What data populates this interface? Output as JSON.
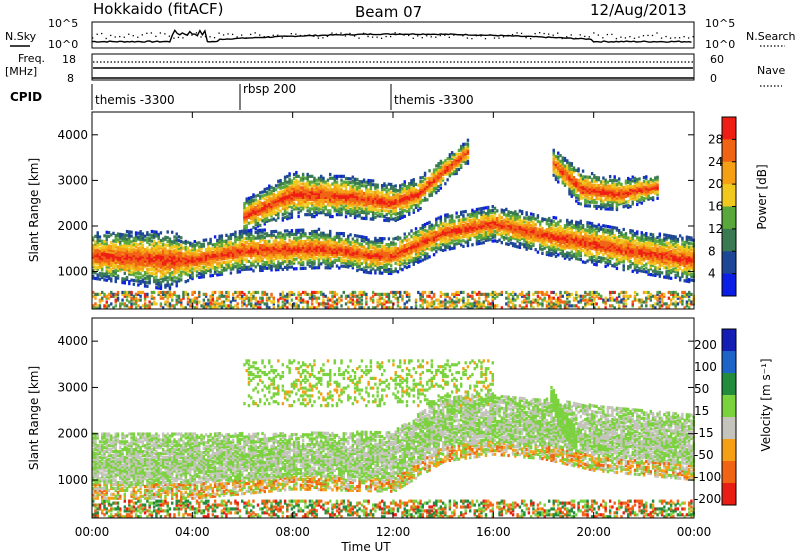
{
  "header": {
    "station": "Hokkaido (fitACF)",
    "beam": "Beam 07",
    "date": "12/Aug/2013"
  },
  "noise_panel": {
    "left_label": "N.Sky",
    "right_label": "N.Search",
    "left_ticks": [
      "10^5",
      "10^0"
    ],
    "right_ticks": [
      "10^5",
      "10^0"
    ]
  },
  "freq_panel": {
    "left_label_1": "Freq.",
    "left_label_2": "[MHz]",
    "right_label": "Nave",
    "left_ticks": [
      "18",
      "8"
    ],
    "right_ticks": [
      "60",
      "0"
    ]
  },
  "cpid": {
    "label": "CPID",
    "segments": [
      {
        "text": "themis -3300",
        "start_hour": 0
      },
      {
        "text": "rbsp 200",
        "start_hour": 6
      },
      {
        "text": "themis -3300",
        "start_hour": 12
      }
    ]
  },
  "power_panel": {
    "ylabel": "Slant Range [km]",
    "y_ticks": [
      "1000",
      "2000",
      "3000",
      "4000"
    ],
    "colorbar": {
      "label": "Power [dB]",
      "ticks": [
        "4",
        "8",
        "12",
        "16",
        "20",
        "24",
        "28"
      ]
    }
  },
  "velocity_panel": {
    "ylabel": "Slant Range [km]",
    "y_ticks": [
      "1000",
      "2000",
      "3000",
      "4000"
    ],
    "colorbar": {
      "label": "Velocity [m s⁻¹]",
      "ticks": [
        "200",
        "100",
        "50",
        "15",
        "-15",
        "-50",
        "-100",
        "-200"
      ]
    }
  },
  "x_axis": {
    "label": "Time UT",
    "ticks": [
      "00:00",
      "04:00",
      "08:00",
      "12:00",
      "16:00",
      "20:00",
      "00:00"
    ]
  },
  "chart_data": [
    {
      "type": "heatmap",
      "title": "",
      "xlabel": "",
      "ylabel": "Slant Range [km]",
      "xlim": [
        0,
        24
      ],
      "ylim": [
        180,
        4500
      ],
      "colorbar_label": "Power [dB]",
      "color_levels": [
        {
          "max": 4,
          "color": "#0a1ee6"
        },
        {
          "max": 8,
          "color": "#1e4696"
        },
        {
          "max": 12,
          "color": "#3a7a52"
        },
        {
          "max": 16,
          "color": "#5aa83c"
        },
        {
          "max": 20,
          "color": "#f0c81e"
        },
        {
          "max": 24,
          "color": "#f5a014"
        },
        {
          "max": 28,
          "color": "#f06414"
        },
        {
          "max": 99,
          "color": "#ee1e14"
        }
      ],
      "bands": [
        {
          "name": "main echo band",
          "x": [
            0,
            3,
            4,
            6,
            9,
            10,
            11,
            12,
            14,
            16,
            18,
            20,
            22,
            24
          ],
          "y_center": [
            1350,
            1250,
            1250,
            1450,
            1500,
            1450,
            1350,
            1350,
            1850,
            2050,
            1800,
            1600,
            1400,
            1250
          ],
          "width": [
            500,
            650,
            400,
            450,
            420,
            380,
            380,
            400,
            380,
            380,
            420,
            450,
            450,
            500
          ]
        },
        {
          "name": "upper echo band",
          "x": [
            6,
            8,
            10,
            12,
            13,
            14,
            15
          ],
          "y_center": [
            2200,
            2700,
            2650,
            2500,
            2700,
            3200,
            3650
          ],
          "width": [
            350,
            500,
            450,
            400,
            350,
            300,
            250
          ]
        },
        {
          "name": "late echo band",
          "x": [
            18.3,
            19.5,
            21,
            22.5
          ],
          "y_center": [
            3400,
            2800,
            2700,
            2850
          ],
          "width": [
            300,
            400,
            350,
            250
          ]
        }
      ]
    },
    {
      "type": "heatmap",
      "title": "",
      "xlabel": "Time UT",
      "ylabel": "Slant Range [km]",
      "xlim": [
        0,
        24
      ],
      "ylim": [
        180,
        4500
      ],
      "colorbar_label": "Velocity [m s⁻¹]",
      "color_levels": [
        {
          "value": 200,
          "color": "#141eb4"
        },
        {
          "value": 100,
          "color": "#1e64c8"
        },
        {
          "value": 50,
          "color": "#238c3c"
        },
        {
          "value": 15,
          "color": "#7ad23c"
        },
        {
          "value": -15,
          "color": "#c4c4bd"
        },
        {
          "value": -50,
          "color": "#f5a014"
        },
        {
          "value": -100,
          "color": "#f06414"
        },
        {
          "value": -200,
          "color": "#e81e14"
        }
      ],
      "bands": [
        {
          "name": "ground scatter band",
          "x": [
            0,
            4,
            8,
            12,
            14,
            16,
            18,
            20,
            24
          ],
          "y_center": [
            1300,
            1300,
            1400,
            1400,
            2100,
            2200,
            2100,
            1900,
            1700
          ],
          "width": [
            700,
            700,
            600,
            650,
            700,
            650,
            650,
            700,
            700
          ]
        },
        {
          "name": "flow feature",
          "x": [
            18.2,
            18.8,
            19.3
          ],
          "y_center": [
            2900,
            2200,
            1800
          ],
          "velocity": 15
        }
      ]
    }
  ]
}
